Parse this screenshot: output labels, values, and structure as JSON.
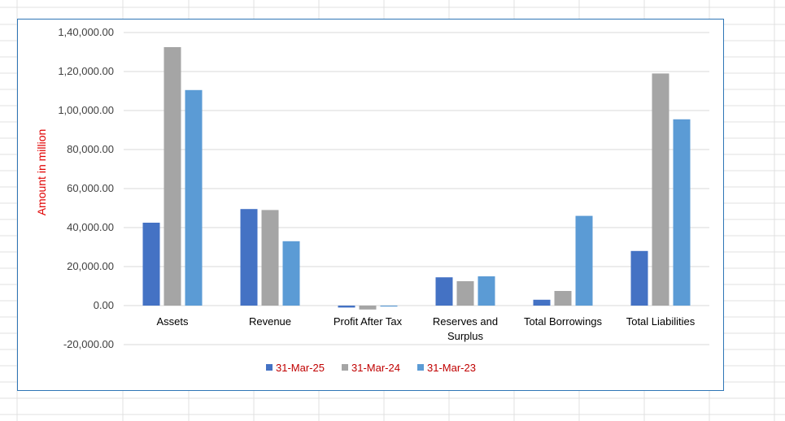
{
  "colors": {
    "gridline": "#d9d9d9",
    "sheet_gridline": "#e0e0e0",
    "frame_border": "#2e75b6",
    "label_text": "#000000",
    "legend_text": "#c00000",
    "axis_title": "#e00000"
  },
  "chart_data": {
    "type": "bar",
    "title": "",
    "xlabel": "",
    "ylabel": "Amount in million",
    "categories": [
      "Assets",
      "Revenue",
      "Profit After Tax",
      "Reserves and Surplus",
      "Total Borrowings",
      "Total Liabilities"
    ],
    "series": [
      {
        "name": "31-Mar-25",
        "color": "#4472c4",
        "values": [
          42500,
          49500,
          -1000,
          14500,
          3000,
          28000
        ]
      },
      {
        "name": "31-Mar-24",
        "color": "#a5a5a5",
        "values": [
          132500,
          49000,
          -2000,
          12500,
          7500,
          119000
        ]
      },
      {
        "name": "31-Mar-23",
        "color": "#5b9bd5",
        "values": [
          110500,
          33000,
          -500,
          15000,
          46000,
          95500
        ]
      }
    ],
    "ylim": [
      -20000,
      140000
    ],
    "y_ticks": [
      -20000,
      0,
      20000,
      40000,
      60000,
      80000,
      100000,
      120000,
      140000
    ],
    "y_tick_labels": [
      "-20,000.00",
      "0.00",
      "20,000.00",
      "40,000.00",
      "60,000.00",
      "80,000.00",
      "1,00,000.00",
      "1,20,000.00",
      "1,40,000.00"
    ],
    "grid": true,
    "legend_position": "bottom"
  }
}
